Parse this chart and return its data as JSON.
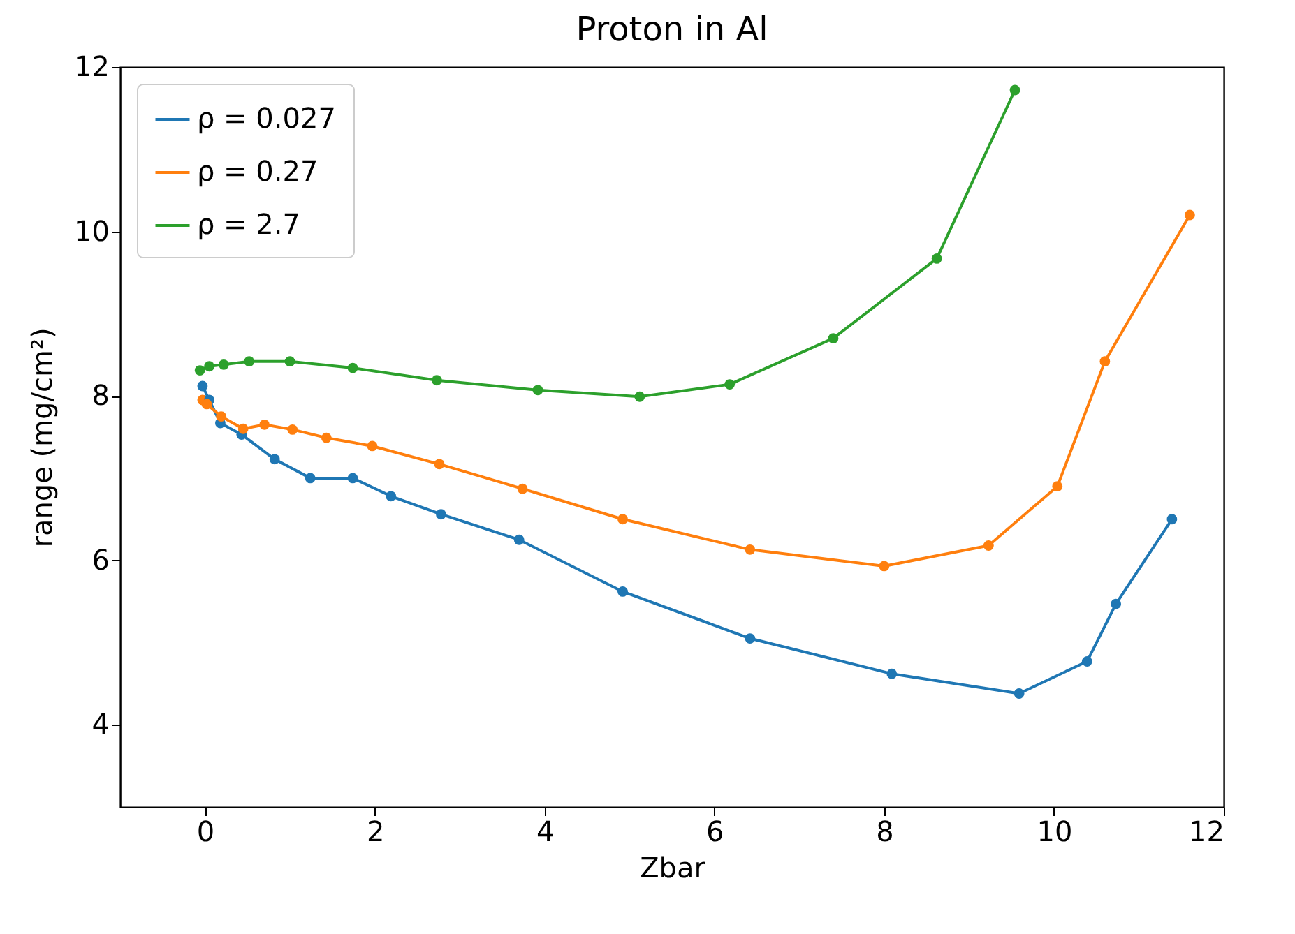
{
  "chart_data": {
    "type": "line",
    "title": "Proton in Al",
    "xlabel": "Zbar",
    "ylabel": "range (mg/cm²)",
    "xlim": [
      -1,
      12
    ],
    "xticks": [
      0,
      2,
      4,
      6,
      8,
      10,
      12
    ],
    "ylim": [
      3,
      12
    ],
    "yticks": [
      4,
      6,
      8,
      10,
      12
    ],
    "grid": false,
    "legend": "top left",
    "marker": "circle",
    "line_style": "solid",
    "series": [
      {
        "name": "ρ = 0.027",
        "color": "#1f77b4",
        "x": [
          -0.03,
          0.05,
          0.18,
          0.43,
          0.82,
          1.24,
          1.74,
          2.19,
          2.78,
          3.7,
          4.92,
          6.42,
          8.09,
          9.59,
          10.39,
          10.73,
          11.39
        ],
        "values": [
          8.12,
          7.95,
          7.67,
          7.53,
          7.23,
          7.0,
          7.0,
          6.78,
          6.56,
          6.25,
          5.62,
          5.05,
          4.62,
          4.38,
          4.77,
          5.47,
          6.5
        ]
      },
      {
        "name": "ρ = 0.27",
        "color": "#ff7f0e",
        "x": [
          -0.03,
          0.02,
          0.19,
          0.45,
          0.7,
          1.03,
          1.43,
          1.97,
          2.76,
          3.74,
          4.92,
          6.42,
          8.0,
          9.23,
          10.04,
          10.6,
          11.6
        ],
        "values": [
          7.95,
          7.9,
          7.75,
          7.6,
          7.65,
          7.59,
          7.49,
          7.39,
          7.17,
          6.87,
          6.5,
          6.13,
          5.93,
          6.18,
          6.9,
          8.42,
          10.2
        ]
      },
      {
        "name": "ρ = 2.7",
        "color": "#2ca02c",
        "x": [
          -0.06,
          0.05,
          0.22,
          0.52,
          1.0,
          1.74,
          2.73,
          3.92,
          5.12,
          6.18,
          7.4,
          8.62,
          9.54
        ],
        "values": [
          8.31,
          8.36,
          8.38,
          8.42,
          8.42,
          8.34,
          8.19,
          8.07,
          7.99,
          8.14,
          8.7,
          9.67,
          11.72
        ]
      }
    ]
  }
}
